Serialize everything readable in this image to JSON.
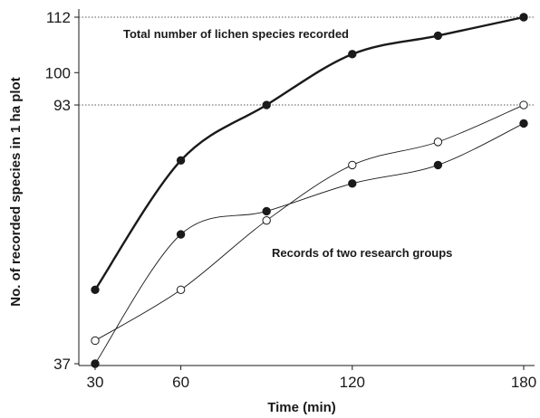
{
  "chart_data": {
    "type": "scatter",
    "title": "",
    "xlabel": "Time (min)",
    "ylabel": "No. of recorded species in 1 ha plot",
    "x_ticks": [
      30,
      60,
      120,
      180
    ],
    "y_ticks": [
      37,
      100,
      112
    ],
    "xlim": [
      25,
      183
    ],
    "ylim": [
      37,
      112
    ],
    "reference_lines": [
      {
        "y": 112,
        "label": "112"
      },
      {
        "y": 93,
        "label": "93"
      }
    ],
    "annotations": [
      {
        "text": "Total number of lichen species recorded",
        "near": "upper curve"
      },
      {
        "text": "Records of two research groups",
        "near": "lower curves"
      }
    ],
    "series": [
      {
        "marker": "filled-circle",
        "x": [
          30,
          60,
          90,
          120,
          150,
          180
        ],
        "y": [
          53,
          81,
          93,
          104,
          108,
          112
        ],
        "fit": "thick smooth curve",
        "color": "#1a1a1a"
      },
      {
        "marker": "filled-circle",
        "x": [
          30,
          60,
          90,
          120,
          150,
          180
        ],
        "y": [
          37,
          65,
          70,
          76,
          80,
          89
        ],
        "fit": "thin smooth curve",
        "color": "#1a1a1a"
      },
      {
        "marker": "open-circle",
        "x": [
          30,
          60,
          90,
          120,
          150,
          180
        ],
        "y": [
          42,
          53,
          68,
          80,
          85,
          93
        ],
        "fit": "thin smooth curve",
        "color": "#1a1a1a"
      }
    ],
    "grid": false,
    "legend": "none"
  }
}
